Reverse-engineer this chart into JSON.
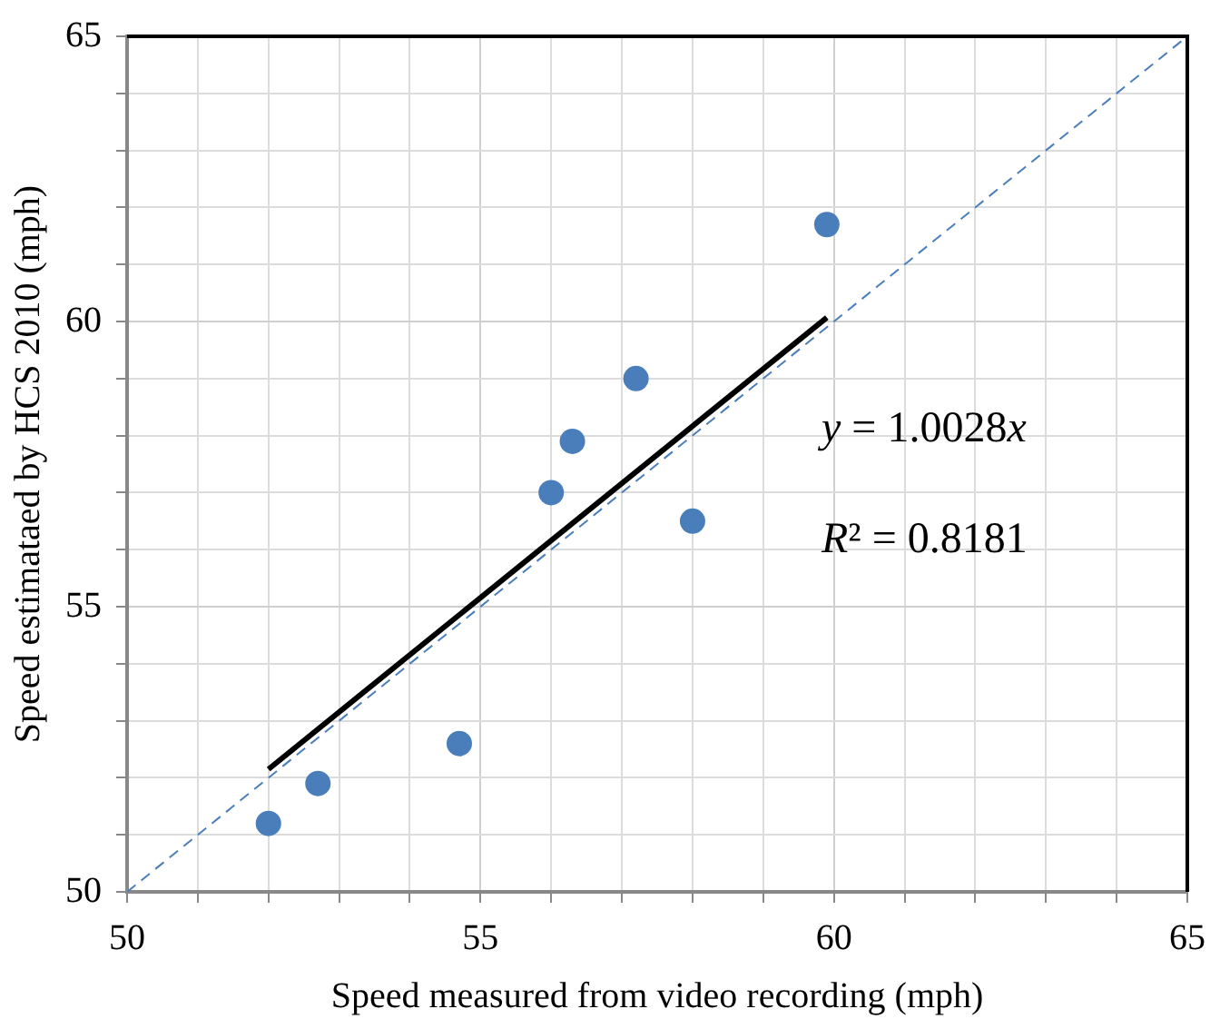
{
  "chart_data": {
    "type": "scatter",
    "xlabel": "Speed measured from video recording (mph)",
    "ylabel": "Speed estimataed by HCS 2010 (mph)",
    "xlim": [
      50,
      65
    ],
    "ylim": [
      50,
      65
    ],
    "xticks": [
      50,
      {
        "value": 51,
        "label": null
      },
      {
        "value": 52,
        "label": null
      },
      {
        "value": 53,
        "label": null
      },
      {
        "value": 54,
        "label": null
      },
      55,
      {
        "value": 56,
        "label": null
      },
      {
        "value": 57,
        "label": null
      },
      {
        "value": 58,
        "label": null
      },
      {
        "value": 59,
        "label": null
      },
      60,
      {
        "value": 61,
        "label": null
      },
      {
        "value": 62,
        "label": null
      },
      {
        "value": 63,
        "label": null
      },
      {
        "value": 64,
        "label": null
      },
      65
    ],
    "yticks": [
      50,
      {
        "value": 51,
        "label": null
      },
      {
        "value": 52,
        "label": null
      },
      {
        "value": 53,
        "label": null
      },
      {
        "value": 54,
        "label": null
      },
      55,
      {
        "value": 56,
        "label": null
      },
      {
        "value": 57,
        "label": null
      },
      {
        "value": 58,
        "label": null
      },
      {
        "value": 59,
        "label": null
      },
      60,
      {
        "value": 61,
        "label": null
      },
      {
        "value": 62,
        "label": null
      },
      {
        "value": 63,
        "label": null
      },
      {
        "value": 64,
        "label": null
      },
      65
    ],
    "grid": true,
    "legend": false,
    "marker": "circle",
    "series": [
      {
        "color": "#4a7ebb",
        "x": [
          52.0,
          52.7,
          54.7,
          56.0,
          58.0,
          56.3,
          57.2,
          59.9
        ],
        "values": [
          51.2,
          51.9,
          52.6,
          57.0,
          56.5,
          57.9,
          59.0,
          61.7
        ]
      },
      {
        "type": "line",
        "color": "#000000",
        "marker": "none",
        "line_style": "solid",
        "x": [
          52.0,
          59.9
        ],
        "values": [
          52.15,
          60.07
        ]
      },
      {
        "type": "line",
        "color": "#4a7ebb",
        "marker": "none",
        "line_style": "dashed",
        "x": [
          50,
          65
        ],
        "values": [
          50,
          65
        ]
      }
    ],
    "annotations": [
      "y = 1.0028x",
      "R² = 0.8181"
    ]
  }
}
